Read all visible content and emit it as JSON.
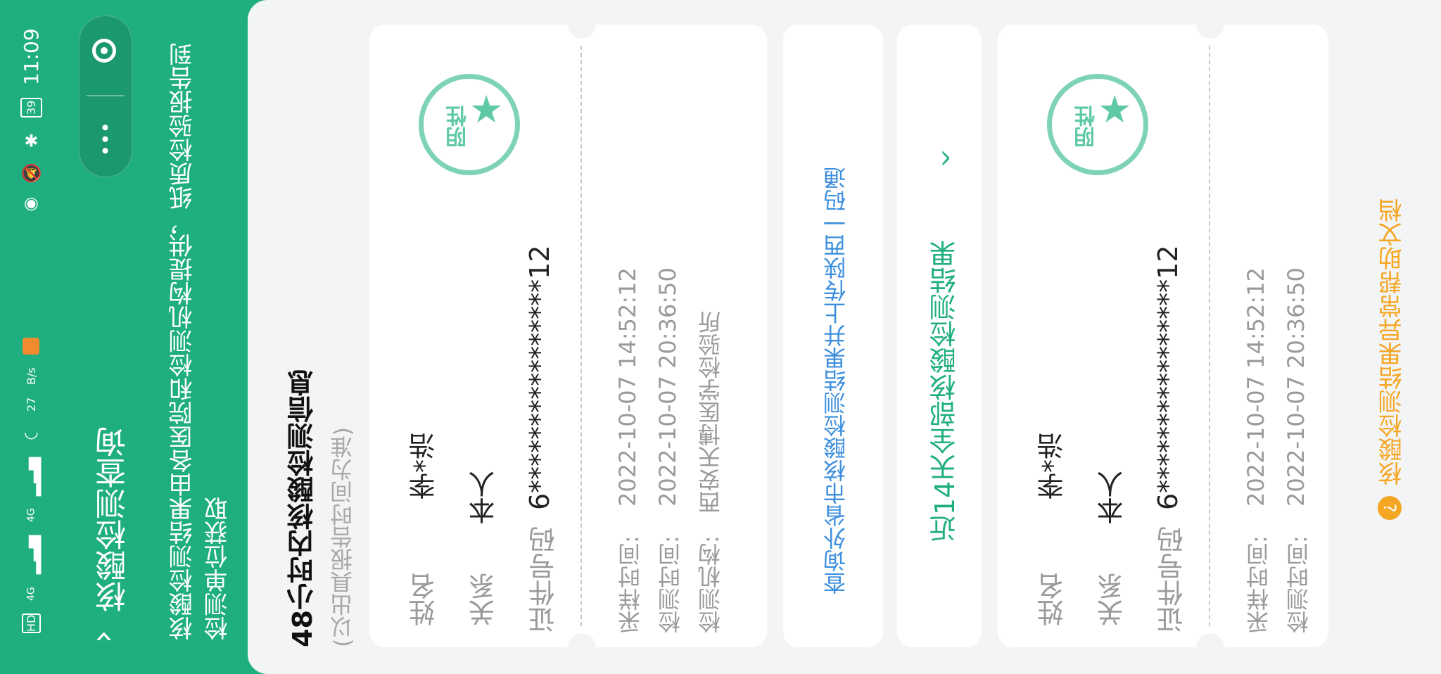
{
  "status_bar": {
    "time": "11:09",
    "battery": "39",
    "net_speed_value": "27",
    "net_speed_unit": "B/s",
    "signal_1": "4G",
    "signal_2": "4G",
    "hd_1": "HD",
    "hd_2": "HD"
  },
  "header": {
    "title": "核酸检测查询",
    "notice": "核酸检测结果由各医院和检测机构提供，纸质检验报告到检测单位获取"
  },
  "section_48h": {
    "title": "48小时内核酸检测信息",
    "subtitle": "(以出具报告时间为准)"
  },
  "stamp": {
    "text": "阴性"
  },
  "labels": {
    "name": "姓名",
    "relation": "关系",
    "id_number": "证件号码",
    "sample_time": "采样时间:",
    "test_time": "检测时间:",
    "test_org": "检测机构:"
  },
  "card1": {
    "name": "李*浩",
    "relation": "本人",
    "id_number": "6****************12",
    "sample_time": "2022-10-07 14:52:12",
    "test_time": "2022-10-07 20:36:50",
    "test_org": "西安天博医学检验所"
  },
  "link_upload": "查询外省市核酸检测结果并上传陕西一码通",
  "recent_14": {
    "label": "近14天全部核酸检测结果",
    "chevron": "^"
  },
  "card2": {
    "name": "李*浩",
    "relation": "本人",
    "id_number": "6****************12",
    "sample_time": "2022-10-07 14:52:12",
    "test_time": "2022-10-07 20:36:50"
  },
  "help": {
    "icon_char": "?",
    "label": "核酸检测结果异常帮助文档"
  },
  "colors": {
    "brand_green": "#1fae80",
    "link_blue": "#3d8fde",
    "help_orange": "#f5a623",
    "stamp_green": "#7ed3b6"
  }
}
